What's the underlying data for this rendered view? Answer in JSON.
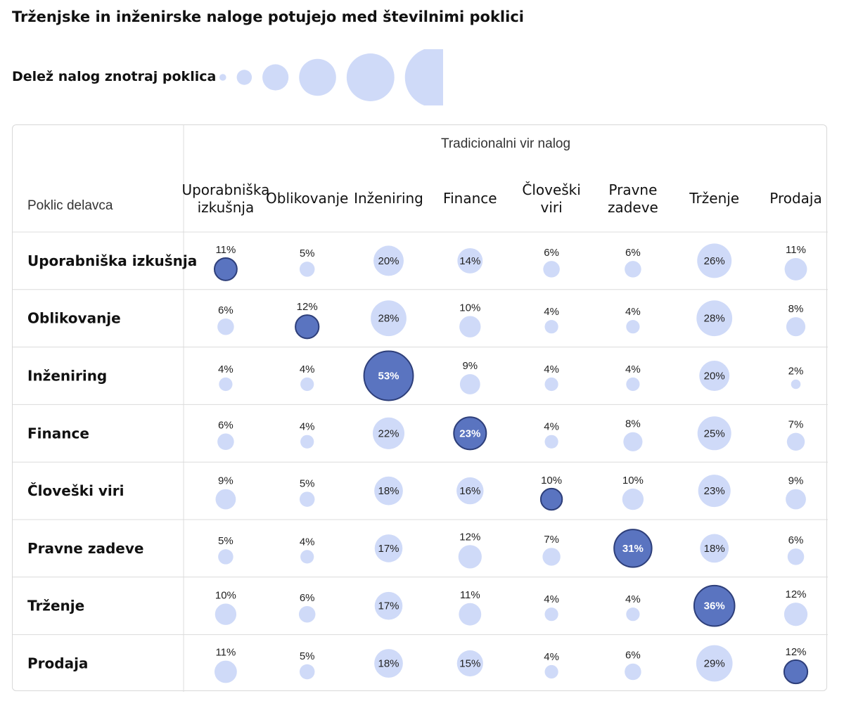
{
  "chart_title": "Trženjske in inženirske naloge potujejo med številnimi poklici",
  "legend": {
    "label": "Delež nalog znotraj poklica",
    "color": "#cfdaf8"
  },
  "colors": {
    "bubble": "#cfdaf8",
    "diagonal": "#5a74c0",
    "diagonal_stroke": "#2e3f7a",
    "grid": "#dcdcdc"
  },
  "chart_data": {
    "type": "bubble-matrix",
    "title": "Trženjske in inženirske naloge potujejo med številnimi poklici",
    "column_axis_label": "Tradicionalni vir nalog",
    "row_axis_label": "Poklic delavca",
    "columns": [
      [
        "Uporabniška",
        "izkušnja"
      ],
      [
        "Oblikovanje"
      ],
      [
        "Inženiring"
      ],
      [
        "Finance"
      ],
      [
        "Človeški",
        "viri"
      ],
      [
        "Pravne",
        "zadeve"
      ],
      [
        "Trženje"
      ],
      [
        "Prodaja"
      ]
    ],
    "rows": [
      "Uporabniška izkušnja",
      "Oblikovanje",
      "Inženiring",
      "Finance",
      "Človeški viri",
      "Pravne zadeve",
      "Trženje",
      "Prodaja"
    ],
    "values": [
      [
        11,
        5,
        20,
        14,
        6,
        6,
        26,
        11
      ],
      [
        6,
        12,
        28,
        10,
        4,
        4,
        28,
        8
      ],
      [
        4,
        4,
        53,
        9,
        4,
        4,
        20,
        2
      ],
      [
        6,
        4,
        22,
        23,
        4,
        8,
        25,
        7
      ],
      [
        9,
        5,
        18,
        16,
        10,
        10,
        23,
        9
      ],
      [
        5,
        4,
        17,
        12,
        7,
        31,
        18,
        6
      ],
      [
        10,
        6,
        17,
        11,
        4,
        4,
        36,
        12
      ],
      [
        11,
        5,
        18,
        15,
        4,
        6,
        29,
        12
      ]
    ],
    "unit": "%",
    "legend_sizes": [
      1,
      5,
      15,
      30,
      50,
      80
    ],
    "highlight": "diagonal"
  }
}
